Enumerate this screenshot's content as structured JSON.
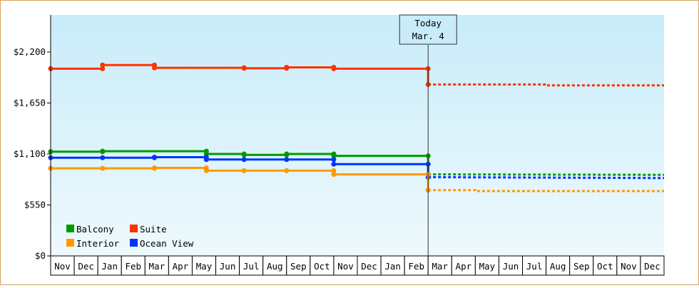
{
  "chart_data": {
    "type": "line",
    "ylim": [
      0,
      2600
    ],
    "y_ticks": [
      {
        "value": 0,
        "label": "$0"
      },
      {
        "value": 550,
        "label": "$550"
      },
      {
        "value": 1100,
        "label": "$1,100"
      },
      {
        "value": 1650,
        "label": "$1,650"
      },
      {
        "value": 2200,
        "label": "$2,200"
      }
    ],
    "x_ticks": [
      "Nov",
      "Dec",
      "Jan",
      "Feb",
      "Mar",
      "Apr",
      "May",
      "Jun",
      "Jul",
      "Aug",
      "Sep",
      "Oct",
      "Nov",
      "Dec",
      "Jan",
      "Feb",
      "Mar",
      "Apr",
      "May",
      "Jun",
      "Jul",
      "Aug",
      "Sep",
      "Oct",
      "Nov",
      "Dec"
    ],
    "today_index": 16,
    "today_label": [
      "Today",
      "Mar. 4"
    ],
    "legend_placement": "bottom-left",
    "series": [
      {
        "name": "Suite",
        "color": "#ff3300",
        "points": [
          [
            0,
            2020
          ],
          [
            2.2,
            2020
          ],
          [
            2.2,
            2060
          ],
          [
            4.4,
            2060
          ],
          [
            4.4,
            2030
          ],
          [
            8.2,
            2030
          ],
          [
            8.2,
            2025
          ],
          [
            10,
            2025
          ],
          [
            10,
            2035
          ],
          [
            12,
            2035
          ],
          [
            12,
            2020
          ],
          [
            16,
            2020
          ],
          [
            16,
            1850
          ]
        ],
        "forecast": [
          [
            16,
            1850
          ],
          [
            21,
            1850
          ],
          [
            21,
            1840
          ],
          [
            26,
            1840
          ]
        ]
      },
      {
        "name": "Balcony",
        "color": "#009900",
        "points": [
          [
            0,
            1125
          ],
          [
            2.2,
            1125
          ],
          [
            2.2,
            1130
          ],
          [
            6.6,
            1130
          ],
          [
            6.6,
            1100
          ],
          [
            8.2,
            1100
          ],
          [
            8.2,
            1090
          ],
          [
            10,
            1090
          ],
          [
            10,
            1100
          ],
          [
            12,
            1100
          ],
          [
            12,
            1080
          ],
          [
            16,
            1080
          ],
          [
            16,
            880
          ]
        ],
        "forecast": [
          [
            16,
            880
          ],
          [
            26,
            875
          ]
        ]
      },
      {
        "name": "Ocean View",
        "color": "#0033ff",
        "points": [
          [
            0,
            1060
          ],
          [
            2.2,
            1060
          ],
          [
            4.4,
            1060
          ],
          [
            4.4,
            1065
          ],
          [
            6.6,
            1065
          ],
          [
            6.6,
            1040
          ],
          [
            8.2,
            1040
          ],
          [
            10,
            1040
          ],
          [
            12,
            1040
          ],
          [
            12,
            990
          ],
          [
            16,
            990
          ],
          [
            16,
            850
          ]
        ],
        "forecast": [
          [
            16,
            850
          ],
          [
            26,
            840
          ]
        ]
      },
      {
        "name": "Interior",
        "color": "#ff9900",
        "points": [
          [
            0,
            945
          ],
          [
            2.2,
            945
          ],
          [
            4.4,
            945
          ],
          [
            4.4,
            950
          ],
          [
            6.6,
            950
          ],
          [
            6.6,
            920
          ],
          [
            8.2,
            920
          ],
          [
            10,
            920
          ],
          [
            12,
            920
          ],
          [
            12,
            880
          ],
          [
            16,
            880
          ],
          [
            16,
            710
          ]
        ],
        "forecast": [
          [
            16,
            710
          ],
          [
            18,
            710
          ],
          [
            18,
            700
          ],
          [
            26,
            700
          ]
        ]
      }
    ]
  },
  "legend": [
    {
      "name": "Balcony",
      "color": "#009900"
    },
    {
      "name": "Suite",
      "color": "#ff3300"
    },
    {
      "name": "Interior",
      "color": "#ff9900"
    },
    {
      "name": "Ocean View",
      "color": "#0033ff"
    }
  ]
}
